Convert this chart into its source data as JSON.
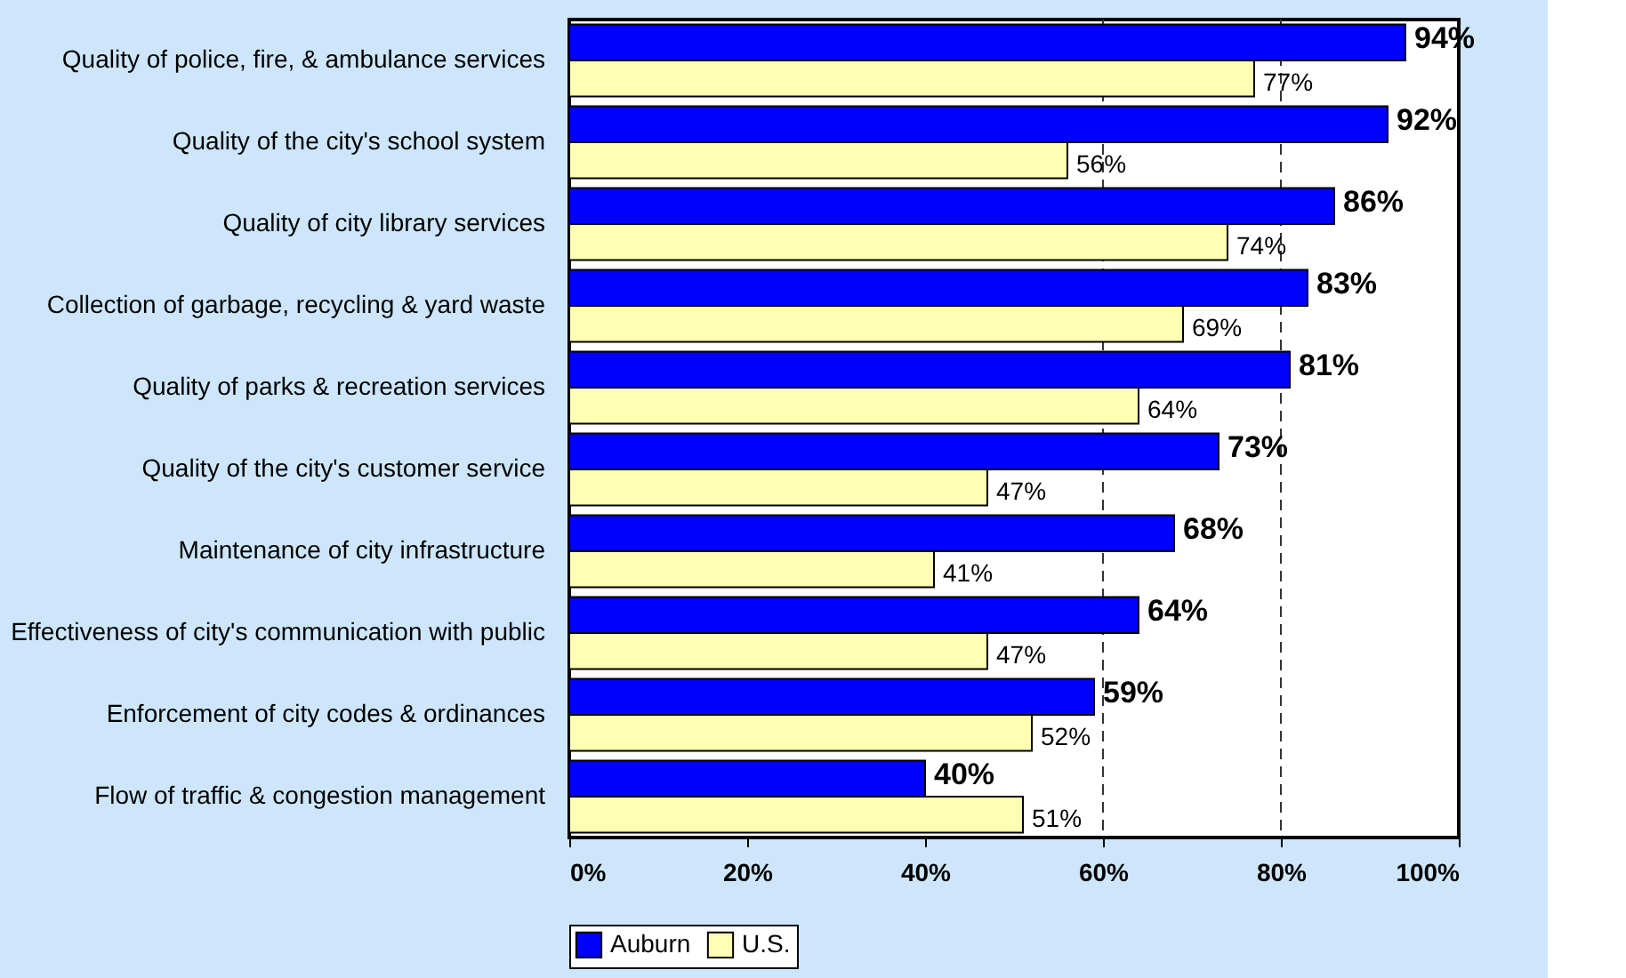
{
  "chart_data": {
    "type": "bar",
    "orientation": "horizontal",
    "categories": [
      "Quality of police, fire, & ambulance services",
      "Quality of the city's school system",
      "Quality of city library services",
      "Collection of garbage, recycling  & yard waste",
      "Quality of parks & recreation services",
      "Quality of the city's customer service ",
      "Maintenance of city infrastructure",
      "Effectiveness of city's communication with public",
      "Enforcement of city codes & ordinances",
      "Flow of traffic & congestion management"
    ],
    "series": [
      {
        "name": "Auburn",
        "color": "#0000ff",
        "values": [
          94,
          92,
          86,
          83,
          81,
          73,
          68,
          64,
          59,
          40
        ],
        "value_labels": [
          "94%",
          "92%",
          "86%",
          "83%",
          "81%",
          "73%",
          "68%",
          "64%",
          "59%",
          "40%"
        ]
      },
      {
        "name": "U.S.",
        "color": "#ffffb3",
        "values": [
          77,
          56,
          74,
          69,
          64,
          47,
          41,
          47,
          52,
          51
        ],
        "value_labels": [
          "77%",
          "56%",
          "74%",
          "69%",
          "64%",
          "47%",
          "41%",
          "47%",
          "52%",
          "51%"
        ]
      }
    ],
    "xlim": [
      0,
      100
    ],
    "xticks": [
      {
        "value": 0,
        "label": "0%"
      },
      {
        "value": 20,
        "label": "20%"
      },
      {
        "value": 40,
        "label": "40%"
      },
      {
        "value": 60,
        "label": "60%"
      },
      {
        "value": 80,
        "label": "80%"
      },
      {
        "value": 100,
        "label": "100%"
      }
    ],
    "ref_lines": [
      {
        "axis": "x",
        "value": 60,
        "color": "#333333",
        "line_style": "dashed"
      },
      {
        "axis": "x",
        "value": 80,
        "color": "#333333",
        "line_style": "dashed"
      }
    ],
    "grid": false,
    "legend": "bottom"
  }
}
